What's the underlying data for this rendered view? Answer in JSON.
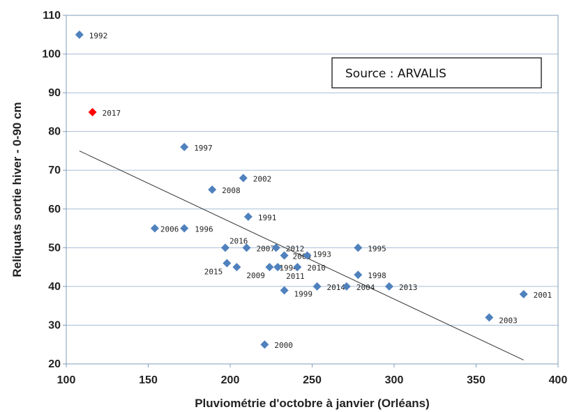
{
  "chart_data": {
    "type": "scatter",
    "title": "",
    "xlabel": "Pluviométrie d'octobre à janvier (Orléans)",
    "ylabel": "Reliquats sortie hiver - 0-90 cm",
    "xlim": [
      100,
      400
    ],
    "ylim": [
      20,
      110
    ],
    "x_ticks": [
      "100",
      "150",
      "200",
      "250",
      "300",
      "350",
      "400"
    ],
    "y_ticks": [
      "20",
      "30",
      "40",
      "50",
      "60",
      "70",
      "80",
      "90",
      "100",
      "110"
    ],
    "grid": "horizontal",
    "annotation": "Source : ARVALIS",
    "series": [
      {
        "color": "#4f81bd",
        "marker": "diamond",
        "points": [
          {
            "label": "1992",
            "x": 108,
            "y": 105
          },
          {
            "label": "1997",
            "x": 172,
            "y": 76
          },
          {
            "label": "2002",
            "x": 208,
            "y": 68
          },
          {
            "label": "2008",
            "x": 189,
            "y": 65
          },
          {
            "label": "1991",
            "x": 211,
            "y": 58
          },
          {
            "label": "2006",
            "x": 154,
            "y": 55
          },
          {
            "label": "1996",
            "x": 172,
            "y": 55
          },
          {
            "label": "2016",
            "x": 197,
            "y": 50
          },
          {
            "label": "2007",
            "x": 210,
            "y": 50
          },
          {
            "label": "2012",
            "x": 228,
            "y": 50
          },
          {
            "label": "1995",
            "x": 278,
            "y": 50
          },
          {
            "label": "2005",
            "x": 233,
            "y": 48
          },
          {
            "label": "1993",
            "x": 247,
            "y": 48
          },
          {
            "label": "2015",
            "x": 198,
            "y": 46
          },
          {
            "label": "2009",
            "x": 204,
            "y": 45
          },
          {
            "label": "1994",
            "x": 224,
            "y": 45
          },
          {
            "label": "2011",
            "x": 229,
            "y": 45
          },
          {
            "label": "2010",
            "x": 241,
            "y": 45
          },
          {
            "label": "1998",
            "x": 278,
            "y": 43
          },
          {
            "label": "2014",
            "x": 253,
            "y": 40
          },
          {
            "label": "2004",
            "x": 271,
            "y": 40
          },
          {
            "label": "2013",
            "x": 297,
            "y": 40
          },
          {
            "label": "1999",
            "x": 233,
            "y": 39
          },
          {
            "label": "2001",
            "x": 379,
            "y": 38
          },
          {
            "label": "2003",
            "x": 358,
            "y": 32
          },
          {
            "label": "2000",
            "x": 221,
            "y": 25
          }
        ]
      },
      {
        "color": "#ff0000",
        "marker": "diamond",
        "points": [
          {
            "label": "2017",
            "x": 116,
            "y": 85
          }
        ]
      }
    ],
    "trendline": {
      "x": [
        108,
        379
      ],
      "y": [
        75,
        21
      ],
      "color": "#333333"
    }
  }
}
